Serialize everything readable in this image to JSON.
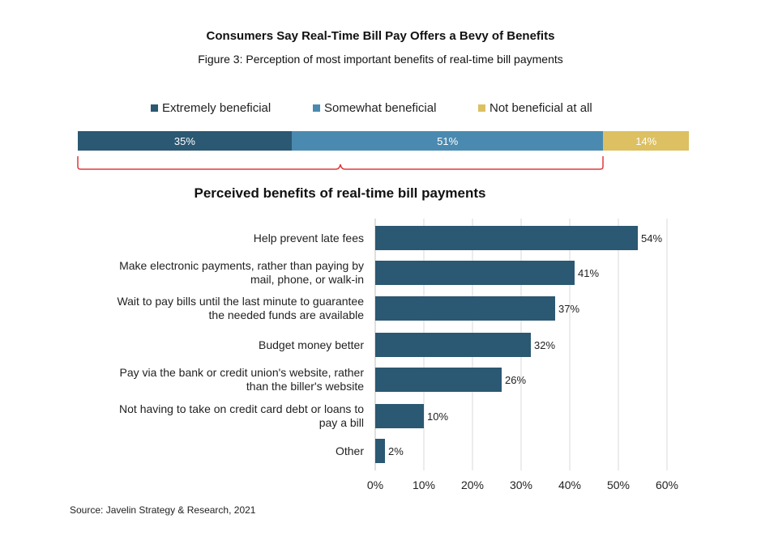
{
  "title": "Consumers Say Real-Time Bill Pay Offers a Bevy of Benefits",
  "subtitle": "Figure 3: Perception of most important benefits of real-time bill payments",
  "source": "Source: Javelin Strategy & Research, 2021",
  "colors": {
    "extremely": "#2b5872",
    "somewhat": "#4a8ab0",
    "not": "#dcc062",
    "bar": "#2b5872",
    "brace": "#e0383c"
  },
  "chart_data": [
    {
      "type": "bar",
      "orientation": "horizontal-stacked",
      "title": "",
      "legend_position": "top",
      "series": [
        {
          "name": "Extremely beneficial",
          "values": [
            35
          ],
          "label": "35%"
        },
        {
          "name": "Somewhat beneficial",
          "values": [
            51
          ],
          "label": "51%"
        },
        {
          "name": "Not beneficial at all",
          "values": [
            14
          ],
          "label": "14%"
        }
      ]
    },
    {
      "type": "bar",
      "orientation": "horizontal",
      "title": "Perceived benefits of real-time bill payments",
      "xlabel": "",
      "ylabel": "",
      "xlim": [
        0,
        60
      ],
      "grid": true,
      "ticks": [
        "0%",
        "10%",
        "20%",
        "30%",
        "40%",
        "50%",
        "60%"
      ],
      "tick_values": [
        0,
        10,
        20,
        30,
        40,
        50,
        60
      ],
      "categories": [
        [
          "Help prevent late fees"
        ],
        [
          "Make electronic payments, rather than paying by",
          "mail, phone, or walk-in"
        ],
        [
          "Wait to pay bills until the last minute to guarantee",
          "the needed funds are available"
        ],
        [
          "Budget money better"
        ],
        [
          "Pay via the bank or credit union's website, rather",
          "than the biller's website"
        ],
        [
          "Not having to take on credit card debt or loans to",
          "pay a bill"
        ],
        [
          "Other"
        ]
      ],
      "values": [
        54,
        41,
        37,
        32,
        26,
        10,
        2
      ],
      "value_labels": [
        "54%",
        "41%",
        "37%",
        "32%",
        "26%",
        "10%",
        "2%"
      ]
    }
  ]
}
